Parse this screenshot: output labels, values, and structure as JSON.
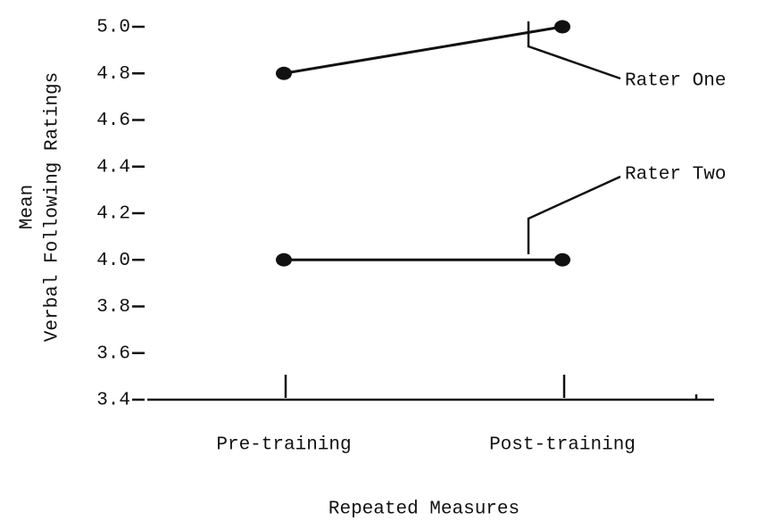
{
  "chart_data": {
    "type": "line",
    "y_label_lines": [
      "Mean",
      "Verbal Following Ratings"
    ],
    "x_label": "Repeated Measures",
    "categories": [
      "Pre-training",
      "Post-training"
    ],
    "series": [
      {
        "name": "Rater One",
        "color": "#111111",
        "values": [
          4.8,
          5.0
        ]
      },
      {
        "name": "Rater Two",
        "color": "#111111",
        "values": [
          4.0,
          4.0
        ]
      }
    ],
    "ylim": [
      3.4,
      5.0
    ],
    "yticks": [
      3.4,
      3.6,
      3.8,
      {
        "value": 4.0,
        "label": "4.0"
      },
      4.2,
      4.4,
      4.6,
      4.8,
      {
        "value": 5.0,
        "label": "5.0"
      }
    ],
    "grid": false
  }
}
